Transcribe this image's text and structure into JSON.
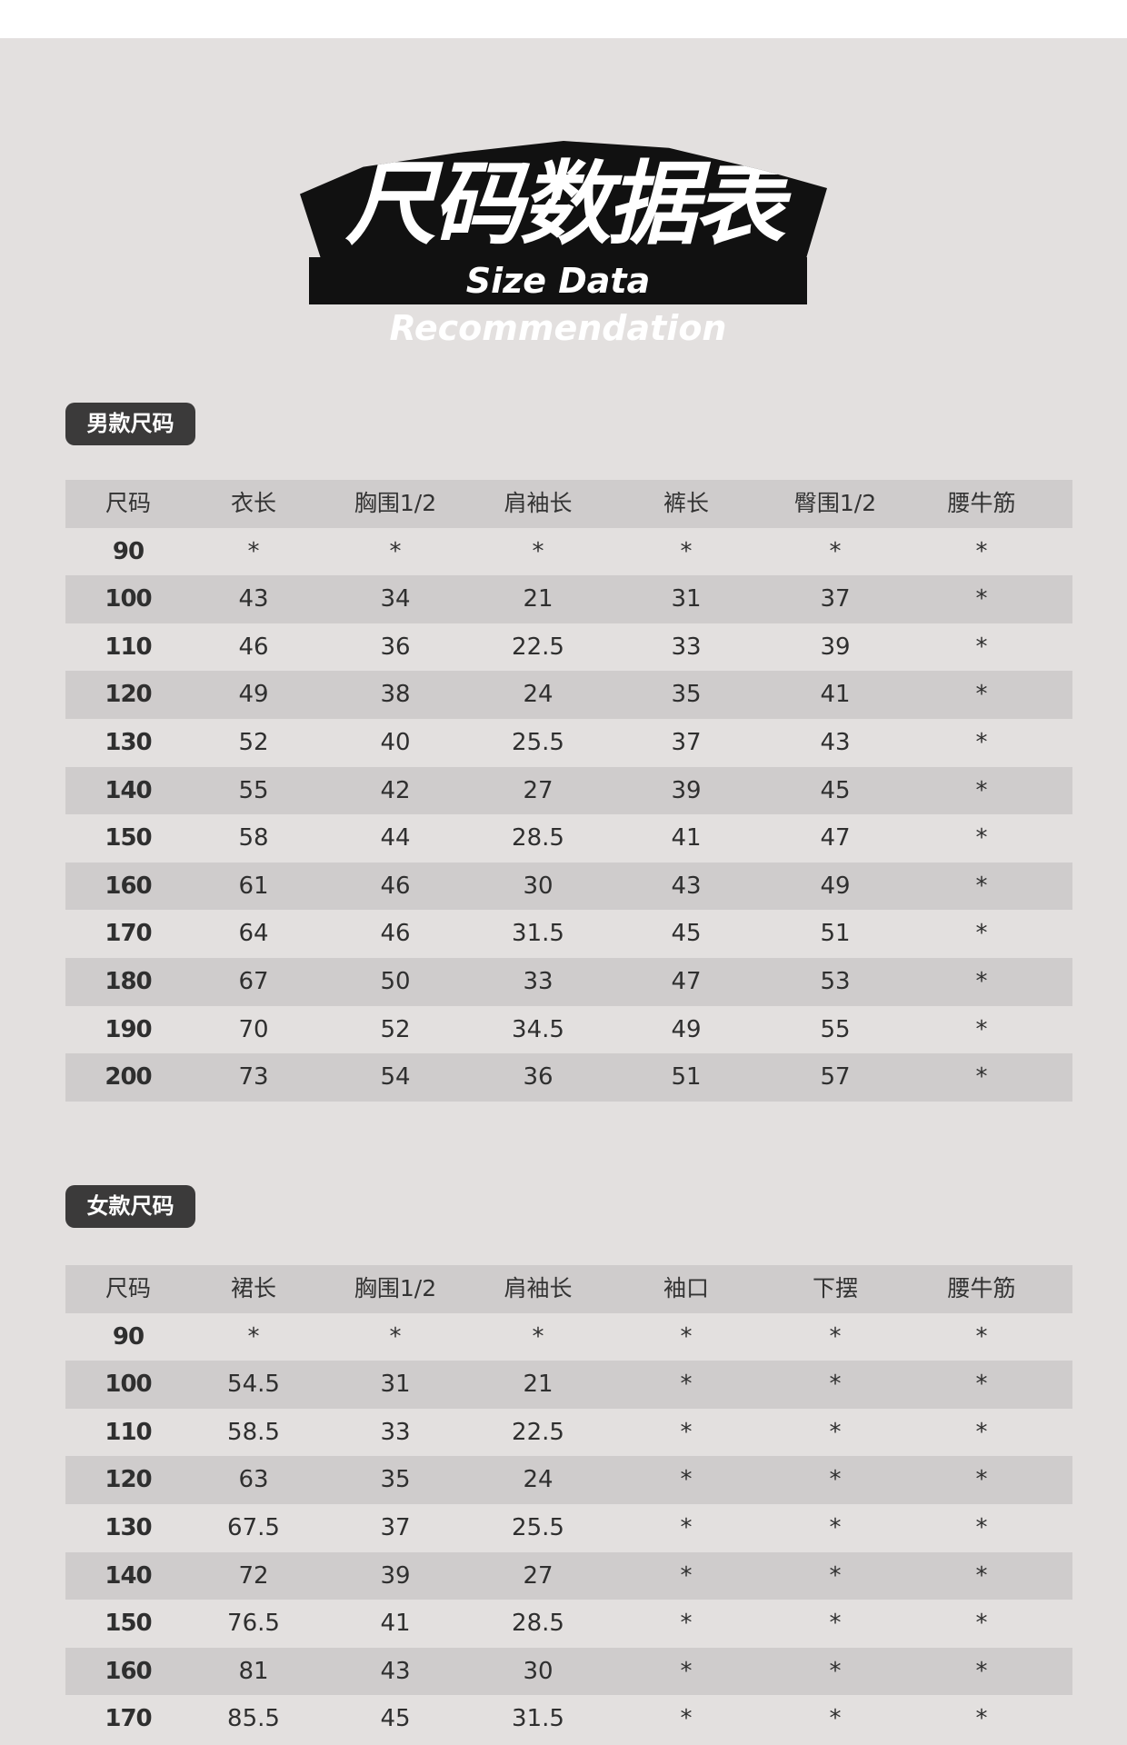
{
  "title": {
    "cn": "尺码数据表",
    "en": "Size Data Recommendation"
  },
  "men": {
    "label": "男款尺码",
    "headers": [
      "尺码",
      "衣长",
      "胸围1/2",
      "肩袖长",
      "裤长",
      "臀围1/2",
      "腰牛筋"
    ],
    "rows": [
      [
        "90",
        "*",
        "*",
        "*",
        "*",
        "*",
        "*"
      ],
      [
        "100",
        "43",
        "34",
        "21",
        "31",
        "37",
        "*"
      ],
      [
        "110",
        "46",
        "36",
        "22.5",
        "33",
        "39",
        "*"
      ],
      [
        "120",
        "49",
        "38",
        "24",
        "35",
        "41",
        "*"
      ],
      [
        "130",
        "52",
        "40",
        "25.5",
        "37",
        "43",
        "*"
      ],
      [
        "140",
        "55",
        "42",
        "27",
        "39",
        "45",
        "*"
      ],
      [
        "150",
        "58",
        "44",
        "28.5",
        "41",
        "47",
        "*"
      ],
      [
        "160",
        "61",
        "46",
        "30",
        "43",
        "49",
        "*"
      ],
      [
        "170",
        "64",
        "46",
        "31.5",
        "45",
        "51",
        "*"
      ],
      [
        "180",
        "67",
        "50",
        "33",
        "47",
        "53",
        "*"
      ],
      [
        "190",
        "70",
        "52",
        "34.5",
        "49",
        "55",
        "*"
      ],
      [
        "200",
        "73",
        "54",
        "36",
        "51",
        "57",
        "*"
      ]
    ]
  },
  "women": {
    "label": "女款尺码",
    "headers": [
      "尺码",
      "裙长",
      "胸围1/2",
      "肩袖长",
      "袖口",
      "下摆",
      "腰牛筋"
    ],
    "rows": [
      [
        "90",
        "*",
        "*",
        "*",
        "*",
        "*",
        "*"
      ],
      [
        "100",
        "54.5",
        "31",
        "21",
        "*",
        "*",
        "*"
      ],
      [
        "110",
        "58.5",
        "33",
        "22.5",
        "*",
        "*",
        "*"
      ],
      [
        "120",
        "63",
        "35",
        "24",
        "*",
        "*",
        "*"
      ],
      [
        "130",
        "67.5",
        "37",
        "25.5",
        "*",
        "*",
        "*"
      ],
      [
        "140",
        "72",
        "39",
        "27",
        "*",
        "*",
        "*"
      ],
      [
        "150",
        "76.5",
        "41",
        "28.5",
        "*",
        "*",
        "*"
      ],
      [
        "160",
        "81",
        "43",
        "30",
        "*",
        "*",
        "*"
      ],
      [
        "170",
        "85.5",
        "45",
        "31.5",
        "*",
        "*",
        "*"
      ]
    ]
  }
}
